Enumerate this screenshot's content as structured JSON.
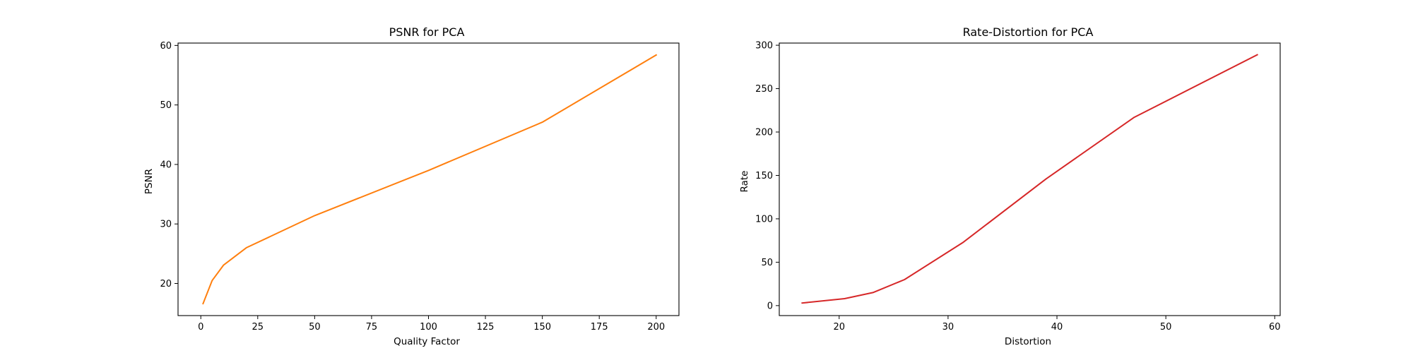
{
  "chart_data": [
    {
      "type": "line",
      "title": "PSNR for PCA",
      "xlabel": "Quality Factor",
      "ylabel": "PSNR",
      "xlim": [
        -10,
        210
      ],
      "ylim": [
        14.6,
        60.4
      ],
      "xticks": [
        0,
        25,
        50,
        75,
        100,
        125,
        150,
        175,
        200
      ],
      "yticks": [
        20,
        30,
        40,
        50,
        60
      ],
      "grid": false,
      "color": "#ff7f0e",
      "series": [
        {
          "x": [
            1,
            5,
            10,
            20,
            50,
            100,
            150,
            200
          ],
          "y": [
            16.6,
            20.5,
            23.1,
            26.0,
            31.4,
            39.0,
            47.1,
            58.4
          ]
        }
      ]
    },
    {
      "type": "line",
      "title": "Rate-Distortion for PCA",
      "xlabel": "Distortion",
      "ylabel": "Rate",
      "xlim": [
        14.5,
        60.5
      ],
      "ylim": [
        -11.5,
        302.5
      ],
      "xticks": [
        20,
        30,
        40,
        50,
        60
      ],
      "yticks": [
        0,
        50,
        100,
        150,
        200,
        250,
        300
      ],
      "grid": false,
      "color": "#d62728",
      "series": [
        {
          "x": [
            16.6,
            20.5,
            23.1,
            26.0,
            31.4,
            39.0,
            47.1,
            58.4
          ],
          "y": [
            3,
            8,
            15,
            30,
            73,
            146,
            217,
            289
          ]
        }
      ]
    }
  ]
}
